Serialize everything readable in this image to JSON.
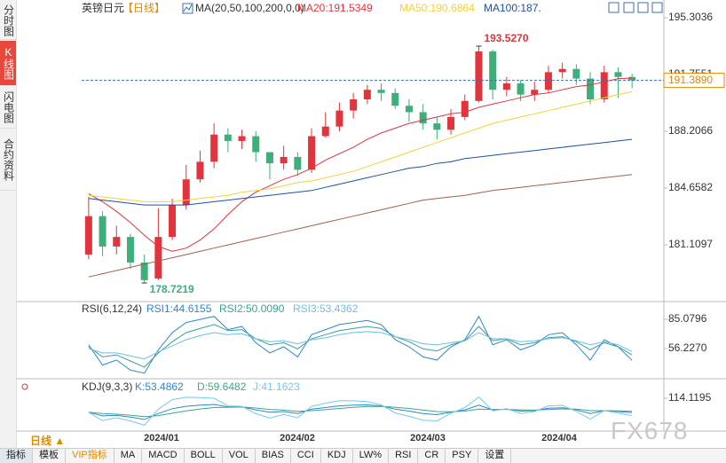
{
  "sidebar_tabs": [
    "分时图",
    "K线图",
    "闪电图",
    "合约资料"
  ],
  "chart_data": [
    {
      "type": "candlestick",
      "title": "英镑日元",
      "period_label": "【日线】",
      "ma_label": "MA(20,50,100,200,0,0)",
      "categories": [
        null,
        null,
        null,
        null,
        null,
        null,
        null,
        null,
        null,
        null,
        null,
        null,
        null,
        null,
        null,
        null,
        null,
        null,
        null,
        null,
        null,
        null,
        null,
        null,
        null,
        null,
        null,
        null,
        null,
        null,
        null,
        null,
        null,
        null,
        null,
        null,
        null,
        null,
        null,
        null
      ],
      "open": [
        180.5,
        182.9,
        181.0,
        181.6,
        180.0,
        179.0,
        181.6,
        183.6,
        185.2,
        186.3,
        188.0,
        187.6,
        187.9,
        186.9,
        186.2,
        186.6,
        185.8,
        187.9,
        188.5,
        189.5,
        190.2,
        190.8,
        190.6,
        189.8,
        189.4,
        188.7,
        188.3,
        189.1,
        190.1,
        193.2,
        190.8,
        191.2,
        190.5,
        190.8,
        191.9,
        192.1,
        191.5,
        190.2,
        191.9,
        191.6
      ],
      "close": [
        182.9,
        181.0,
        181.6,
        180.0,
        178.9,
        181.6,
        183.6,
        185.2,
        186.3,
        188.0,
        187.6,
        187.9,
        186.9,
        186.2,
        186.6,
        185.8,
        187.9,
        188.5,
        189.5,
        190.2,
        190.8,
        190.6,
        189.8,
        189.4,
        188.7,
        188.3,
        189.1,
        190.1,
        193.2,
        190.8,
        191.2,
        190.5,
        190.8,
        191.9,
        192.1,
        191.5,
        190.2,
        191.9,
        191.6,
        191.39
      ],
      "high": [
        184.1,
        183.2,
        182.3,
        181.8,
        180.5,
        183.4,
        184.0,
        186.1,
        187.0,
        188.7,
        188.4,
        188.3,
        188.2,
        186.8,
        187.3,
        186.9,
        188.4,
        189.4,
        190.0,
        190.6,
        191.1,
        191.2,
        190.9,
        190.2,
        189.9,
        189.1,
        189.6,
        190.5,
        193.527,
        193.3,
        191.6,
        191.4,
        191.3,
        192.3,
        192.5,
        192.4,
        191.9,
        192.3,
        192.2,
        191.8
      ],
      "low": [
        180.2,
        180.4,
        180.5,
        179.6,
        178.7219,
        178.9,
        181.4,
        183.3,
        185.0,
        185.9,
        186.9,
        187.1,
        186.3,
        185.2,
        185.8,
        185.4,
        185.6,
        187.8,
        188.2,
        189.0,
        189.9,
        190.1,
        189.6,
        188.8,
        188.3,
        187.7,
        188.0,
        188.9,
        190.0,
        190.2,
        190.4,
        190.1,
        190.1,
        190.6,
        191.5,
        191.1,
        189.9,
        190.0,
        190.3,
        190.9
      ],
      "up_color": "#e2343c",
      "down_color": "#3fae7a",
      "series": [
        {
          "name": "MA20",
          "label": "MA20:191.5349",
          "color": "#e2343c",
          "values": [
            184.3,
            183.8,
            183.2,
            182.5,
            181.7,
            181.0,
            180.7,
            180.9,
            181.4,
            182.1,
            183.0,
            183.8,
            184.4,
            184.8,
            185.2,
            185.5,
            185.9,
            186.4,
            186.8,
            187.2,
            187.7,
            188.1,
            188.4,
            188.7,
            188.9,
            189.1,
            189.3,
            189.4,
            189.7,
            189.9,
            190.1,
            190.3,
            190.5,
            190.6,
            190.8,
            191.0,
            191.1,
            191.3,
            191.5,
            191.5349
          ]
        },
        {
          "name": "MA50",
          "label": "MA50:190.6864",
          "color": "#f3d23a",
          "values": [
            184.2,
            184.1,
            184.0,
            183.9,
            183.8,
            183.8,
            183.8,
            183.9,
            184.0,
            184.1,
            184.2,
            184.4,
            184.5,
            184.6,
            184.8,
            185.0,
            185.1,
            185.3,
            185.5,
            185.7,
            186.0,
            186.3,
            186.6,
            186.9,
            187.2,
            187.5,
            187.8,
            188.1,
            188.4,
            188.7,
            188.9,
            189.1,
            189.3,
            189.5,
            189.7,
            189.9,
            190.1,
            190.3,
            190.5,
            190.6864
          ]
        },
        {
          "name": "MA100",
          "label": "MA100:187.",
          "color": "#1d4fa3",
          "values": [
            184.0,
            183.9,
            183.8,
            183.7,
            183.6,
            183.6,
            183.6,
            183.6,
            183.7,
            183.8,
            183.9,
            184.0,
            184.1,
            184.2,
            184.3,
            184.4,
            184.5,
            184.7,
            184.9,
            185.1,
            185.3,
            185.5,
            185.7,
            185.9,
            186.0,
            186.2,
            186.3,
            186.5,
            186.6,
            186.7,
            186.8,
            186.9,
            187.0,
            187.1,
            187.2,
            187.3,
            187.4,
            187.5,
            187.6,
            187.7
          ]
        },
        {
          "name": "MA200",
          "color": "#a0604a",
          "values": [
            179.1,
            179.3,
            179.5,
            179.7,
            179.9,
            180.1,
            180.3,
            180.5,
            180.7,
            180.9,
            181.1,
            181.3,
            181.5,
            181.7,
            181.9,
            182.1,
            182.3,
            182.5,
            182.7,
            182.9,
            183.1,
            183.3,
            183.5,
            183.7,
            183.9,
            184.0,
            184.1,
            184.2,
            184.35,
            184.5,
            184.6,
            184.7,
            184.8,
            184.9,
            185.0,
            185.1,
            185.2,
            185.3,
            185.4,
            185.5
          ]
        }
      ],
      "annotations": [
        {
          "text": "193.5270",
          "value": 193.527,
          "index": 28,
          "color": "#e2343c"
        },
        {
          "text": "178.7219",
          "value": 178.7219,
          "index": 4,
          "color": "#3fae7a"
        }
      ],
      "current_price": {
        "value": 191.389,
        "label": "191.3890"
      },
      "xlim": [
        -0.5,
        39.5
      ],
      "ylim": [
        177.67,
        196.19
      ],
      "yticks": [
        195.3036,
        191.7551,
        {
          "value": 188.2066,
          "label": "188.2066"
        },
        184.6582,
        181.1097
      ],
      "xticks": [
        {
          "value": 5.23,
          "label": "2024/01"
        },
        {
          "value": 14.98,
          "label": "2024/02"
        },
        {
          "value": 24.34,
          "label": "2024/03"
        },
        {
          "value": 33.77,
          "label": "2024/04"
        }
      ]
    },
    {
      "type": "line",
      "title": "RSI(6,12,24)",
      "ylim": [
        28.25,
        100
      ],
      "yticks": [
        85.0796,
        {
          "value": 56.227,
          "label": "56.2270"
        }
      ],
      "series": [
        {
          "name": "RSI1",
          "label": "RSI1:44.6155",
          "color": "#2f86d0",
          "values": [
            60,
            40,
            45,
            35,
            32,
            55,
            72,
            82,
            85,
            88,
            75,
            78,
            62,
            52,
            58,
            48,
            70,
            75,
            80,
            82,
            84,
            80,
            65,
            58,
            48,
            45,
            58,
            65,
            88,
            60,
            65,
            55,
            60,
            70,
            72,
            60,
            45,
            65,
            58,
            44.6155
          ]
        },
        {
          "name": "RSI2",
          "label": "RSI2:50.0090",
          "color": "#3a9e9a",
          "values": [
            58,
            48,
            50,
            44,
            38,
            52,
            63,
            72,
            76,
            80,
            74,
            75,
            66,
            60,
            62,
            56,
            66,
            70,
            74,
            76,
            78,
            76,
            68,
            63,
            56,
            54,
            60,
            64,
            78,
            64,
            66,
            60,
            62,
            67,
            68,
            63,
            55,
            62,
            58,
            50.009
          ]
        },
        {
          "name": "RSI3",
          "label": "RSI3:53.4362",
          "color": "#6cbfe6",
          "values": [
            56,
            52,
            52,
            49,
            46,
            53,
            59,
            65,
            69,
            72,
            70,
            71,
            66,
            63,
            64,
            61,
            65,
            67,
            70,
            72,
            73,
            72,
            68,
            65,
            61,
            60,
            62,
            64,
            72,
            66,
            66,
            63,
            64,
            66,
            67,
            64,
            60,
            63,
            60,
            53.4362
          ]
        }
      ]
    },
    {
      "type": "line",
      "title": "KDJ(9,3,3)",
      "ylim": [
        -20,
        192
      ],
      "yticks": [
        114.1195
      ],
      "series": [
        {
          "name": "K",
          "label": "K:53.4862",
          "color": "#2f86d0",
          "values": [
            55,
            40,
            42,
            35,
            25,
            50,
            70,
            80,
            85,
            88,
            78,
            78,
            65,
            55,
            58,
            50,
            68,
            75,
            82,
            85,
            86,
            82,
            68,
            60,
            50,
            45,
            55,
            65,
            85,
            65,
            68,
            60,
            62,
            72,
            74,
            65,
            50,
            62,
            58,
            53.4862
          ]
        },
        {
          "name": "D",
          "label": "D:59.6482",
          "color": "#3aa88c",
          "values": [
            55,
            50,
            47,
            43,
            37,
            41,
            51,
            61,
            69,
            75,
            76,
            77,
            73,
            67,
            64,
            59,
            62,
            66,
            71,
            76,
            79,
            80,
            76,
            71,
            64,
            58,
            57,
            60,
            68,
            67,
            67,
            65,
            64,
            67,
            69,
            68,
            62,
            62,
            61,
            59.6482
          ]
        },
        {
          "name": "J",
          "label": "J:41.1623",
          "color": "#78c8e8",
          "values": [
            55,
            20,
            32,
            19,
            1,
            68,
            108,
            118,
            117,
            114,
            82,
            80,
            49,
            31,
            46,
            32,
            80,
            93,
            104,
            103,
            100,
            86,
            52,
            38,
            22,
            19,
            51,
            75,
            119,
            61,
            70,
            50,
            58,
            82,
            84,
            59,
            26,
            62,
            52,
            41.1623
          ]
        }
      ]
    }
  ],
  "period_selector": "日线 ▲",
  "toolbar": [
    "指标",
    "模板",
    "VIP指标",
    "MA",
    "MACD",
    "BOLL",
    "VOL",
    "BIAS",
    "CCI",
    "KDJ",
    "LW%",
    "RSI",
    "CR",
    "PSY",
    "设置"
  ],
  "watermark": "FX678"
}
